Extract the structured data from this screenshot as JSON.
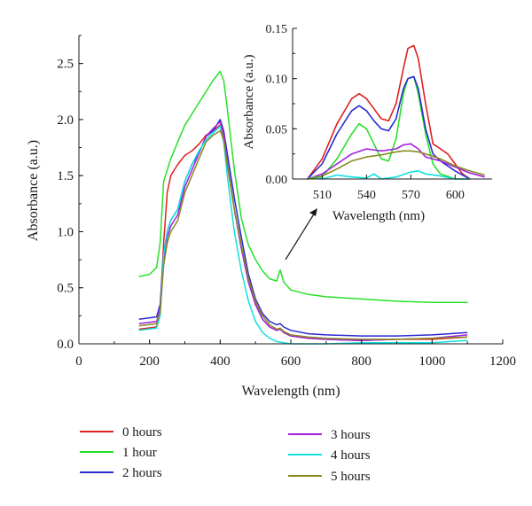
{
  "chart_data": [
    {
      "type": "line",
      "title": "",
      "xlabel": "Wavelength (nm)",
      "ylabel": "Absorbance (a.u.)",
      "xlim": [
        0,
        1200
      ],
      "ylim": [
        0,
        2.75
      ],
      "xticks": [
        0,
        200,
        400,
        600,
        800,
        1000,
        1200
      ],
      "yticks": [
        0.0,
        0.5,
        1.0,
        1.5,
        2.0,
        2.5
      ],
      "xtick_labels": [
        "0",
        "200",
        "400",
        "600",
        "800",
        "1000",
        "1200"
      ],
      "ytick_labels": [
        "0.0",
        "0.5",
        "1.0",
        "1.5",
        "2.0",
        "2.5"
      ],
      "grid": false,
      "legend_position": "bottom",
      "annotation": "arrow pointing from the main curves near 600 nm to the inset",
      "series": [
        {
          "name": "0 hours",
          "color": "#e02020",
          "x": [
            170,
            220,
            230,
            240,
            250,
            260,
            280,
            300,
            320,
            340,
            360,
            380,
            400,
            410,
            420,
            440,
            460,
            480,
            500,
            520,
            540,
            560,
            570,
            580,
            600,
            650,
            700,
            800,
            900,
            1000,
            1100
          ],
          "y": [
            0.13,
            0.15,
            0.3,
            0.9,
            1.35,
            1.5,
            1.6,
            1.68,
            1.72,
            1.78,
            1.86,
            1.9,
            1.95,
            1.85,
            1.6,
            1.2,
            0.85,
            0.55,
            0.35,
            0.22,
            0.15,
            0.12,
            0.14,
            0.1,
            0.07,
            0.05,
            0.04,
            0.03,
            0.04,
            0.04,
            0.06
          ]
        },
        {
          "name": "1 hour",
          "color": "#28e028",
          "x": [
            170,
            200,
            220,
            230,
            240,
            250,
            260,
            280,
            300,
            320,
            340,
            360,
            380,
            400,
            410,
            420,
            440,
            460,
            480,
            500,
            520,
            540,
            560,
            570,
            580,
            600,
            650,
            700,
            800,
            900,
            1000,
            1100
          ],
          "y": [
            0.6,
            0.62,
            0.68,
            0.9,
            1.45,
            1.55,
            1.65,
            1.8,
            1.95,
            2.05,
            2.15,
            2.25,
            2.35,
            2.43,
            2.35,
            2.1,
            1.55,
            1.12,
            0.88,
            0.75,
            0.65,
            0.58,
            0.56,
            0.66,
            0.55,
            0.48,
            0.44,
            0.42,
            0.4,
            0.38,
            0.37,
            0.37
          ]
        },
        {
          "name": "2 hours",
          "color": "#2a2ad0",
          "x": [
            170,
            220,
            230,
            240,
            250,
            260,
            280,
            300,
            320,
            340,
            360,
            380,
            400,
            410,
            420,
            440,
            460,
            480,
            500,
            520,
            540,
            560,
            570,
            580,
            600,
            650,
            700,
            800,
            900,
            1000,
            1100
          ],
          "y": [
            0.22,
            0.24,
            0.35,
            0.8,
            1.0,
            1.1,
            1.2,
            1.45,
            1.6,
            1.7,
            1.85,
            1.9,
            2.0,
            1.9,
            1.7,
            1.3,
            0.95,
            0.62,
            0.4,
            0.27,
            0.2,
            0.17,
            0.18,
            0.15,
            0.12,
            0.09,
            0.08,
            0.07,
            0.07,
            0.08,
            0.1
          ]
        },
        {
          "name": "3 hours",
          "color": "#a020e0",
          "x": [
            170,
            220,
            230,
            240,
            250,
            260,
            280,
            300,
            320,
            340,
            360,
            380,
            400,
            410,
            420,
            440,
            460,
            480,
            500,
            520,
            540,
            560,
            570,
            580,
            600,
            650,
            700,
            800,
            900,
            1000,
            1100
          ],
          "y": [
            0.18,
            0.2,
            0.3,
            0.75,
            0.95,
            1.05,
            1.15,
            1.4,
            1.55,
            1.7,
            1.85,
            1.92,
            1.98,
            1.88,
            1.62,
            1.2,
            0.85,
            0.55,
            0.35,
            0.22,
            0.15,
            0.12,
            0.13,
            0.1,
            0.07,
            0.05,
            0.04,
            0.03,
            0.04,
            0.05,
            0.08
          ]
        },
        {
          "name": "4 hours",
          "color": "#10e0e0",
          "x": [
            170,
            220,
            230,
            240,
            250,
            260,
            280,
            300,
            320,
            340,
            360,
            380,
            400,
            410,
            420,
            440,
            460,
            480,
            500,
            520,
            540,
            560,
            580,
            600,
            650,
            700,
            800,
            900,
            1000,
            1100
          ],
          "y": [
            0.12,
            0.14,
            0.25,
            0.8,
            1.0,
            1.1,
            1.2,
            1.45,
            1.6,
            1.72,
            1.82,
            1.88,
            1.94,
            1.8,
            1.5,
            1.0,
            0.65,
            0.38,
            0.2,
            0.1,
            0.05,
            0.02,
            0.01,
            0.0,
            0.0,
            0.0,
            0.01,
            0.01,
            0.01,
            0.03
          ]
        },
        {
          "name": "5 hours",
          "color": "#8a8a20",
          "x": [
            170,
            220,
            230,
            240,
            250,
            260,
            280,
            300,
            320,
            340,
            360,
            380,
            400,
            410,
            420,
            440,
            460,
            480,
            500,
            520,
            540,
            560,
            570,
            580,
            600,
            650,
            700,
            800,
            900,
            1000,
            1100
          ],
          "y": [
            0.16,
            0.18,
            0.28,
            0.7,
            0.9,
            1.0,
            1.1,
            1.35,
            1.5,
            1.65,
            1.8,
            1.86,
            1.9,
            1.82,
            1.6,
            1.2,
            0.88,
            0.58,
            0.38,
            0.25,
            0.17,
            0.13,
            0.14,
            0.11,
            0.08,
            0.06,
            0.05,
            0.04,
            0.04,
            0.05,
            0.06
          ]
        }
      ]
    },
    {
      "type": "line",
      "title": "",
      "xlabel": "Wavelength (nm)",
      "ylabel": "Absorbance (a.u.)",
      "xlim": [
        490,
        625
      ],
      "ylim": [
        0,
        0.15
      ],
      "xticks": [
        510,
        540,
        570,
        600
      ],
      "yticks": [
        0.0,
        0.05,
        0.1,
        0.15
      ],
      "xtick_labels": [
        "510",
        "540",
        "570",
        "600"
      ],
      "ytick_labels": [
        "0.00",
        "0.05",
        "0.10",
        "0.15"
      ],
      "grid": false,
      "series": [
        {
          "name": "0 hours",
          "color": "#e02020",
          "x": [
            500,
            510,
            520,
            530,
            535,
            540,
            545,
            550,
            555,
            560,
            565,
            568,
            572,
            575,
            580,
            585,
            590,
            595,
            600,
            605,
            610
          ],
          "y": [
            0.0,
            0.02,
            0.055,
            0.08,
            0.085,
            0.08,
            0.07,
            0.06,
            0.058,
            0.075,
            0.11,
            0.13,
            0.133,
            0.12,
            0.075,
            0.035,
            0.03,
            0.025,
            0.015,
            0.005,
            0.0
          ]
        },
        {
          "name": "1 hour",
          "color": "#28e028",
          "x": [
            500,
            510,
            520,
            530,
            535,
            540,
            545,
            550,
            555,
            560,
            565,
            568,
            572,
            575,
            580,
            585,
            590,
            600,
            610
          ],
          "y": [
            0.0,
            0.002,
            0.02,
            0.045,
            0.055,
            0.05,
            0.035,
            0.02,
            0.018,
            0.04,
            0.085,
            0.1,
            0.102,
            0.085,
            0.045,
            0.015,
            0.005,
            0.0,
            0.0
          ]
        },
        {
          "name": "2 hours",
          "color": "#2a2ad0",
          "x": [
            500,
            510,
            520,
            530,
            535,
            540,
            545,
            550,
            555,
            560,
            565,
            568,
            572,
            575,
            580,
            585,
            590,
            600,
            610
          ],
          "y": [
            0.0,
            0.015,
            0.045,
            0.068,
            0.073,
            0.068,
            0.058,
            0.05,
            0.048,
            0.06,
            0.09,
            0.1,
            0.102,
            0.09,
            0.05,
            0.025,
            0.018,
            0.008,
            0.0
          ]
        },
        {
          "name": "3 hours",
          "color": "#a020e0",
          "x": [
            500,
            510,
            520,
            530,
            540,
            550,
            560,
            565,
            570,
            575,
            580,
            590,
            600,
            610,
            620
          ],
          "y": [
            0.0,
            0.005,
            0.015,
            0.025,
            0.03,
            0.028,
            0.03,
            0.034,
            0.035,
            0.03,
            0.022,
            0.018,
            0.012,
            0.006,
            0.002
          ]
        },
        {
          "name": "4 hours",
          "color": "#10e0e0",
          "x": [
            500,
            505,
            510,
            520,
            530,
            540,
            545,
            550,
            560,
            570,
            575,
            580,
            590,
            600,
            610
          ],
          "y": [
            0.0,
            0.002,
            0.0,
            0.004,
            0.002,
            0.001,
            0.005,
            0.0,
            0.002,
            0.007,
            0.008,
            0.005,
            0.003,
            0.0,
            0.0
          ]
        },
        {
          "name": "5 hours",
          "color": "#8a8a20",
          "x": [
            500,
            510,
            520,
            530,
            540,
            550,
            560,
            565,
            570,
            575,
            580,
            590,
            600,
            610,
            620
          ],
          "y": [
            0.0,
            0.003,
            0.01,
            0.018,
            0.022,
            0.024,
            0.027,
            0.028,
            0.028,
            0.027,
            0.025,
            0.02,
            0.013,
            0.008,
            0.004
          ]
        }
      ]
    }
  ]
}
